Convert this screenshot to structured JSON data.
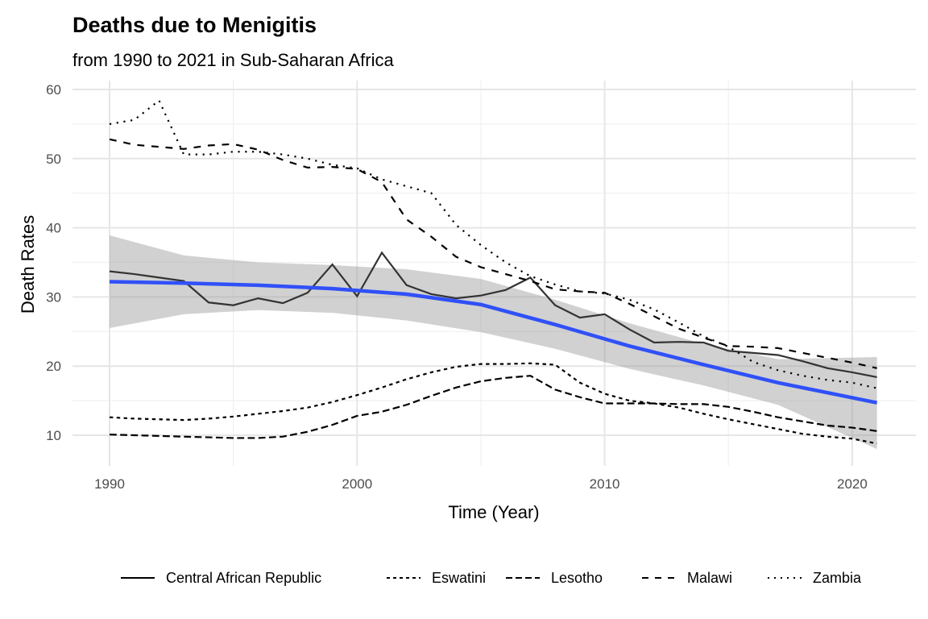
{
  "chart_data": {
    "type": "line",
    "title": "Deaths due to Menigitis",
    "subtitle": "from 1990 to 2021 in Sub-Saharan Africa",
    "xlabel": "Time (Year)",
    "ylabel": "Death Rates",
    "xlim": [
      1988.5,
      2022.5
    ],
    "ylim": [
      5.5,
      61
    ],
    "xticks": [
      1990,
      2000,
      2010,
      2020
    ],
    "yticks": [
      10,
      20,
      30,
      40,
      50,
      60
    ],
    "grid": true,
    "legend_position": "bottom",
    "x": [
      1990,
      1991,
      1992,
      1993,
      1994,
      1995,
      1996,
      1997,
      1998,
      1999,
      2000,
      2001,
      2002,
      2003,
      2004,
      2005,
      2006,
      2007,
      2008,
      2009,
      2010,
      2011,
      2012,
      2013,
      2014,
      2015,
      2016,
      2017,
      2018,
      2019,
      2020,
      2021
    ],
    "series": [
      {
        "name": "Central African Republic",
        "linetype": "solid",
        "values": [
          33.7,
          33.3,
          32.8,
          32.3,
          29.2,
          28.8,
          29.8,
          29.1,
          30.6,
          34.7,
          30.1,
          36.4,
          31.7,
          30.4,
          29.8,
          30.2,
          31.0,
          32.8,
          28.8,
          27.0,
          27.5,
          25.3,
          23.4,
          23.5,
          23.4,
          22.2,
          21.9,
          21.6,
          20.7,
          19.7,
          19.1,
          18.4
        ]
      },
      {
        "name": "Eswatini",
        "linetype": "2,2",
        "values": [
          12.6,
          12.4,
          12.3,
          12.2,
          12.4,
          12.7,
          13.1,
          13.5,
          14.0,
          14.8,
          15.8,
          16.9,
          18.1,
          19.1,
          19.9,
          20.3,
          20.3,
          20.4,
          20.2,
          17.6,
          16.0,
          15.0,
          14.6,
          14.0,
          13.1,
          12.3,
          11.6,
          10.9,
          10.2,
          9.8,
          9.5,
          8.8
        ]
      },
      {
        "name": "Lesotho",
        "linetype": "4,2",
        "values": [
          10.1,
          10.0,
          9.9,
          9.8,
          9.7,
          9.6,
          9.6,
          9.8,
          10.5,
          11.5,
          12.8,
          13.4,
          14.4,
          15.7,
          16.9,
          17.8,
          18.3,
          18.6,
          16.6,
          15.5,
          14.6,
          14.6,
          14.6,
          14.5,
          14.5,
          14.1,
          13.4,
          12.6,
          12.0,
          11.4,
          11.1,
          10.6
        ]
      },
      {
        "name": "Malawi",
        "linetype": "4,4",
        "values": [
          52.8,
          52.0,
          51.7,
          51.4,
          51.9,
          52.1,
          51.3,
          49.8,
          48.7,
          48.8,
          48.5,
          46.6,
          41.2,
          38.7,
          35.8,
          34.3,
          33.3,
          32.3,
          31.1,
          30.8,
          30.6,
          29.0,
          27.2,
          25.4,
          24.1,
          22.9,
          22.8,
          22.6,
          21.9,
          21.2,
          20.5,
          19.7
        ]
      },
      {
        "name": "Zambia",
        "linetype": "1,3",
        "values": [
          55.0,
          55.6,
          58.4,
          50.6,
          50.6,
          51.0,
          51.0,
          50.6,
          50.0,
          49.1,
          48.6,
          47.0,
          46.0,
          45.0,
          40.4,
          37.5,
          35.0,
          33.0,
          31.8,
          30.8,
          30.5,
          29.6,
          28.2,
          26.3,
          24.3,
          22.8,
          20.6,
          19.4,
          18.6,
          18.0,
          17.6,
          16.8
        ]
      }
    ],
    "smooth": {
      "color": "#3050F8",
      "x": [
        1990,
        1993,
        1996,
        1999,
        2002,
        2005,
        2008,
        2011,
        2014,
        2017,
        2021
      ],
      "fit": [
        32.2,
        32.0,
        31.7,
        31.2,
        30.4,
        28.9,
        26.0,
        22.9,
        20.2,
        17.6,
        14.7
      ],
      "lower": [
        25.5,
        27.5,
        28.1,
        27.7,
        26.6,
        24.9,
        22.5,
        19.6,
        17.2,
        14.4,
        8.0
      ],
      "upper": [
        38.9,
        36.0,
        35.0,
        34.6,
        34.0,
        32.6,
        29.6,
        26.2,
        23.2,
        21.0,
        21.3
      ]
    }
  }
}
